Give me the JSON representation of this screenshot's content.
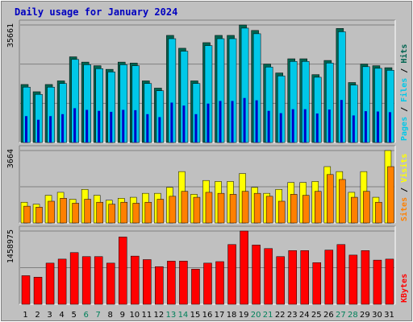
{
  "chart_data": {
    "type": "bar",
    "title": "Daily usage for January 2024",
    "categories": [
      "1",
      "2",
      "3",
      "4",
      "5",
      "6",
      "7",
      "8",
      "9",
      "10",
      "11",
      "12",
      "13",
      "14",
      "15",
      "16",
      "17",
      "18",
      "19",
      "20",
      "21",
      "22",
      "23",
      "24",
      "25",
      "26",
      "27",
      "28",
      "29",
      "30",
      "31"
    ],
    "weekend_days": [
      "6",
      "7",
      "13",
      "14",
      "20",
      "21",
      "27",
      "28"
    ],
    "colors": {
      "background": "#c0c0c0",
      "plot_bg": "#c0c0c0",
      "title": "#0000c0",
      "grid": "#808080",
      "hits": "#006450",
      "files": "#00c8e8",
      "pages": "#0000c8",
      "visits": "#ffff00",
      "sites": "#ff8000",
      "kbytes": "#ff0000",
      "weekend_label": "#00805a",
      "weekday_label": "#000000"
    },
    "panels": [
      {
        "name": "requests",
        "max_label": "35661",
        "ylim": [
          0,
          35661
        ],
        "legend": [
          "Pages",
          "Files",
          "Hits"
        ],
        "legend_colors": [
          "#00c8e8",
          "#00c8e8",
          "#006450"
        ],
        "series": [
          {
            "name": "Hits",
            "values": [
              17600,
              15400,
              17600,
              18700,
              26000,
              24400,
              23300,
              22200,
              24400,
              24100,
              18700,
              16500,
              32500,
              28600,
              18700,
              30300,
              32500,
              32500,
              35661,
              34000,
              23800,
              21100,
              25400,
              25400,
              20600,
              24900,
              34600,
              18200,
              23800,
              23300,
              22700
            ]
          },
          {
            "name": "Files",
            "values": [
              16800,
              14600,
              16800,
              17900,
              25200,
              23600,
              22400,
              21400,
              23600,
              23300,
              17900,
              15700,
              31500,
              27700,
              17900,
              29400,
              31500,
              31500,
              34700,
              33000,
              22900,
              20200,
              24600,
              24600,
              19800,
              24100,
              33600,
              17400,
              23000,
              22500,
              21900
            ]
          },
          {
            "name": "Pages",
            "values": [
              8000,
              6900,
              8000,
              8600,
              10400,
              9900,
              9600,
              9300,
              9900,
              9800,
              8600,
              7700,
              12100,
              11200,
              8600,
              11800,
              12600,
              12600,
              13500,
              12800,
              9600,
              8900,
              10100,
              10100,
              8800,
              10000,
              12900,
              8200,
              9500,
              9400,
              9200
            ]
          }
        ]
      },
      {
        "name": "visits",
        "max_label": "3664",
        "ylim": [
          0,
          3664
        ],
        "legend": [
          "Sites",
          "Visits"
        ],
        "legend_colors": [
          "#ff8000",
          "#ffff00"
        ],
        "series": [
          {
            "name": "Visits",
            "values": [
              1050,
              950,
              1400,
              1550,
              1200,
              1700,
              1400,
              1150,
              1250,
              1300,
              1500,
              1500,
              1800,
              2600,
              1450,
              2150,
              2100,
              2100,
              2500,
              1800,
              1500,
              1700,
              2050,
              2050,
              2100,
              2850,
              2600,
              1550,
              2600,
              1300,
              3664
            ]
          },
          {
            "name": "Sites",
            "values": [
              850,
              800,
              1100,
              1250,
              1000,
              1200,
              1050,
              950,
              1050,
              1000,
              1050,
              1200,
              1350,
              1600,
              1300,
              1550,
              1500,
              1450,
              1600,
              1500,
              1350,
              1100,
              1450,
              1400,
              1600,
              2450,
              2200,
              1300,
              1600,
              1050,
              2850
            ]
          }
        ]
      },
      {
        "name": "kbytes",
        "max_label": "1458975",
        "ylim": [
          0,
          1458975
        ],
        "legend": [
          "KBytes"
        ],
        "legend_colors": [
          "#ff0000"
        ],
        "series": [
          {
            "name": "KBytes",
            "values": [
              570000,
              540000,
              820000,
              900000,
              1030000,
              950000,
              950000,
              820000,
              1340000,
              960000,
              890000,
              750000,
              860000,
              860000,
              700000,
              820000,
              850000,
              1190000,
              1458975,
              1180000,
              1110000,
              950000,
              1070000,
              1070000,
              830000,
              1080000,
              1190000,
              980000,
              1070000,
              880000,
              900000
            ]
          }
        ]
      }
    ]
  }
}
